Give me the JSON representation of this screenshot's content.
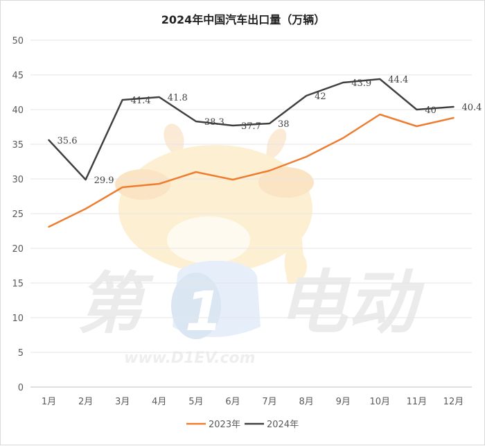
{
  "chart_data": {
    "type": "line",
    "title": "2024年中国汽车出口量（万辆）",
    "categories": [
      "1月",
      "2月",
      "3月",
      "4月",
      "5月",
      "6月",
      "7月",
      "8月",
      "9月",
      "10月",
      "11月",
      "12月"
    ],
    "series": [
      {
        "name": "2023年",
        "color": "#ED7D31",
        "values": [
          23.1,
          25.7,
          28.8,
          29.3,
          31.0,
          29.9,
          31.2,
          33.2,
          35.9,
          39.3,
          37.6,
          38.8
        ],
        "show_labels": false
      },
      {
        "name": "2024年",
        "color": "#404040",
        "values": [
          35.6,
          29.9,
          41.4,
          41.8,
          38.3,
          37.7,
          38,
          42,
          43.9,
          44.4,
          40,
          40.4
        ],
        "labels": [
          "35.6",
          "29.9",
          "41.4",
          "41.8",
          "38.3",
          "37.7",
          "38",
          "42",
          "43.9",
          "44.4",
          "40",
          "40.4"
        ],
        "show_labels": true
      }
    ],
    "ylim": [
      0,
      50
    ],
    "yticks": [
      "0",
      "5",
      "10",
      "15",
      "20",
      "25",
      "30",
      "35",
      "40",
      "45",
      "50"
    ],
    "grid": true,
    "legend": "bottom"
  },
  "watermark": {
    "text_big_1": "第",
    "text_big_2": "电动",
    "url": "www.D1EV.com"
  }
}
